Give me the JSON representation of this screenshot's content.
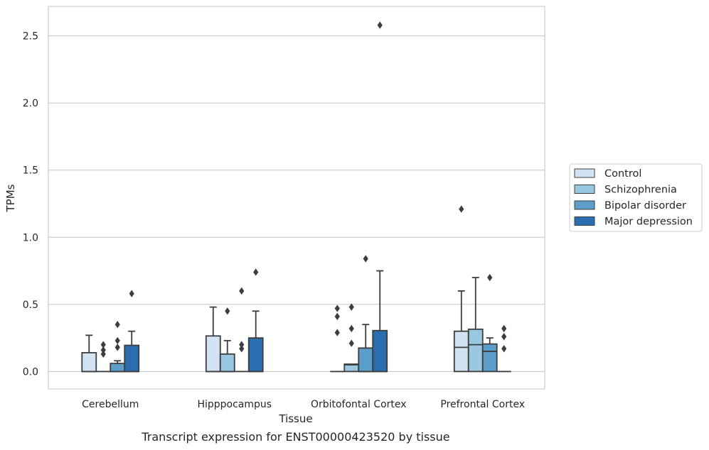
{
  "chart_data": {
    "type": "box",
    "xlabel": "Tissue",
    "ylabel": "TPMs",
    "caption": "Transcript expression for ENST00000423520 by tissue",
    "categories": [
      "Cerebellum",
      "Hipppocampus",
      "Orbitofontal Cortex",
      "Prefrontal Cortex"
    ],
    "ylim": [
      -0.13,
      2.72
    ],
    "yticks": [
      "0.0",
      "0.5",
      "1.0",
      "1.5",
      "2.0",
      "2.5"
    ],
    "grid": "horizontal",
    "legend_position": "right",
    "series": [
      {
        "name": "Control",
        "color": "#d2e3f3",
        "boxes": [
          {
            "q1": 0.0,
            "median": 0.0,
            "q3": 0.14,
            "whisker_low": 0.0,
            "whisker_high": 0.27,
            "outliers": []
          },
          {
            "q1": 0.0,
            "median": 0.0,
            "q3": 0.265,
            "whisker_low": 0.0,
            "whisker_high": 0.48,
            "outliers": []
          },
          {
            "q1": 0.0,
            "median": 0.0,
            "q3": 0.0,
            "whisker_low": 0.0,
            "whisker_high": 0.0,
            "outliers": [
              0.29,
              0.41,
              0.47
            ]
          },
          {
            "q1": 0.0,
            "median": 0.18,
            "q3": 0.3,
            "whisker_low": 0.0,
            "whisker_high": 0.6,
            "outliers": [
              1.21
            ]
          }
        ]
      },
      {
        "name": "Schizophrenia",
        "color": "#9ac8e0",
        "boxes": [
          {
            "q1": 0.0,
            "median": 0.0,
            "q3": 0.0,
            "whisker_low": 0.0,
            "whisker_high": 0.0,
            "outliers": [
              0.13,
              0.16,
              0.2
            ]
          },
          {
            "q1": 0.0,
            "median": 0.0,
            "q3": 0.13,
            "whisker_low": 0.0,
            "whisker_high": 0.23,
            "outliers": [
              0.45
            ]
          },
          {
            "q1": 0.0,
            "median": 0.05,
            "q3": 0.055,
            "whisker_low": 0.0,
            "whisker_high": 0.055,
            "outliers": [
              0.21,
              0.32,
              0.48
            ]
          },
          {
            "q1": 0.0,
            "median": 0.2,
            "q3": 0.315,
            "whisker_low": 0.0,
            "whisker_high": 0.7,
            "outliers": []
          }
        ]
      },
      {
        "name": "Bipolar disorder",
        "color": "#5a9ec9",
        "boxes": [
          {
            "q1": 0.0,
            "median": 0.0,
            "q3": 0.06,
            "whisker_low": 0.0,
            "whisker_high": 0.08,
            "outliers": [
              0.18,
              0.23,
              0.35
            ]
          },
          {
            "q1": 0.0,
            "median": 0.0,
            "q3": 0.0,
            "whisker_low": 0.0,
            "whisker_high": 0.0,
            "outliers": [
              0.17,
              0.2,
              0.6
            ]
          },
          {
            "q1": 0.0,
            "median": 0.0,
            "q3": 0.175,
            "whisker_low": 0.0,
            "whisker_high": 0.35,
            "outliers": [
              0.84
            ]
          },
          {
            "q1": 0.0,
            "median": 0.15,
            "q3": 0.205,
            "whisker_low": 0.0,
            "whisker_high": 0.25,
            "outliers": [
              0.7
            ]
          }
        ]
      },
      {
        "name": "Major depression",
        "color": "#2a6eaf",
        "boxes": [
          {
            "q1": 0.0,
            "median": 0.0,
            "q3": 0.195,
            "whisker_low": 0.0,
            "whisker_high": 0.3,
            "outliers": [
              0.58
            ]
          },
          {
            "q1": 0.0,
            "median": 0.0,
            "q3": 0.25,
            "whisker_low": 0.0,
            "whisker_high": 0.45,
            "outliers": [
              0.74
            ]
          },
          {
            "q1": 0.0,
            "median": 0.0,
            "q3": 0.305,
            "whisker_low": 0.0,
            "whisker_high": 0.75,
            "outliers": [
              2.58
            ]
          },
          {
            "q1": 0.0,
            "median": 0.0,
            "q3": 0.0,
            "whisker_low": 0.0,
            "whisker_high": 0.0,
            "outliers": [
              0.17,
              0.26,
              0.32
            ]
          }
        ]
      }
    ]
  }
}
